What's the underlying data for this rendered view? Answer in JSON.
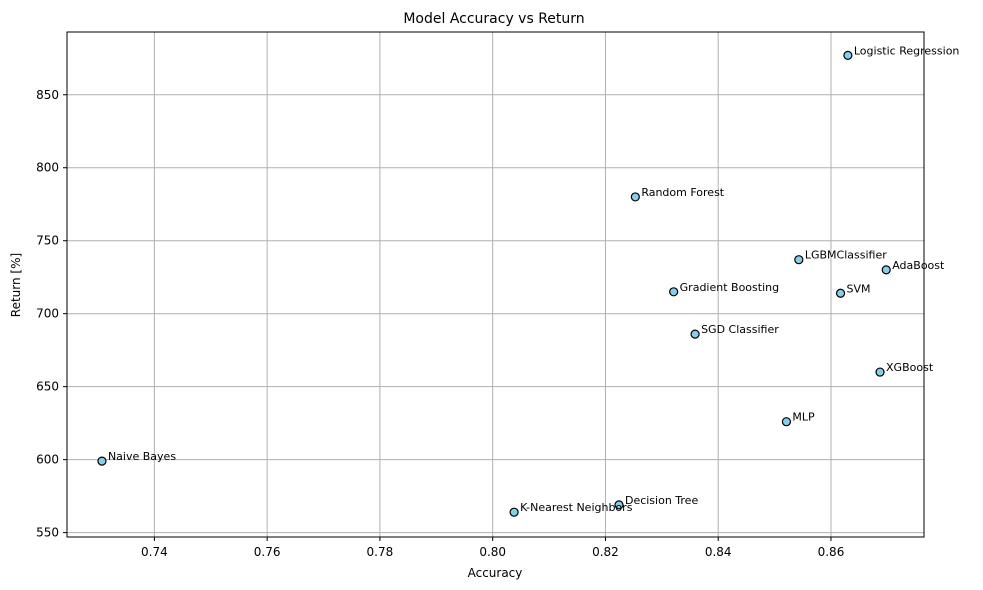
{
  "chart_data": {
    "type": "scatter",
    "title": "Model Accuracy vs Return",
    "xlabel": "Accuracy",
    "ylabel": "Return [%]",
    "xlim": [
      0.7245,
      0.8765
    ],
    "ylim": [
      547,
      893
    ],
    "xticks": [
      0.74,
      0.76,
      0.78,
      0.8,
      0.82,
      0.84,
      0.86
    ],
    "yticks": [
      550,
      600,
      650,
      700,
      750,
      800,
      850
    ],
    "grid": true,
    "marker_color": "#87CEEB",
    "marker_edge_color": "#000000",
    "points": [
      {
        "label": "Logistic Regression",
        "x": 0.863,
        "y": 877
      },
      {
        "label": "Random Forest",
        "x": 0.8253,
        "y": 780
      },
      {
        "label": "LGBMClassifier",
        "x": 0.8543,
        "y": 737
      },
      {
        "label": "AdaBoost",
        "x": 0.8698,
        "y": 730
      },
      {
        "label": "Gradient Boosting",
        "x": 0.8321,
        "y": 715
      },
      {
        "label": "SVM",
        "x": 0.8617,
        "y": 714
      },
      {
        "label": "SGD Classifier",
        "x": 0.8359,
        "y": 686
      },
      {
        "label": "XGBoost",
        "x": 0.8687,
        "y": 660
      },
      {
        "label": "MLP",
        "x": 0.8521,
        "y": 626
      },
      {
        "label": "Naive Bayes",
        "x": 0.7307,
        "y": 599
      },
      {
        "label": "Decision Tree",
        "x": 0.8224,
        "y": 569
      },
      {
        "label": "K-Nearest Neighbors",
        "x": 0.8038,
        "y": 564
      }
    ]
  }
}
